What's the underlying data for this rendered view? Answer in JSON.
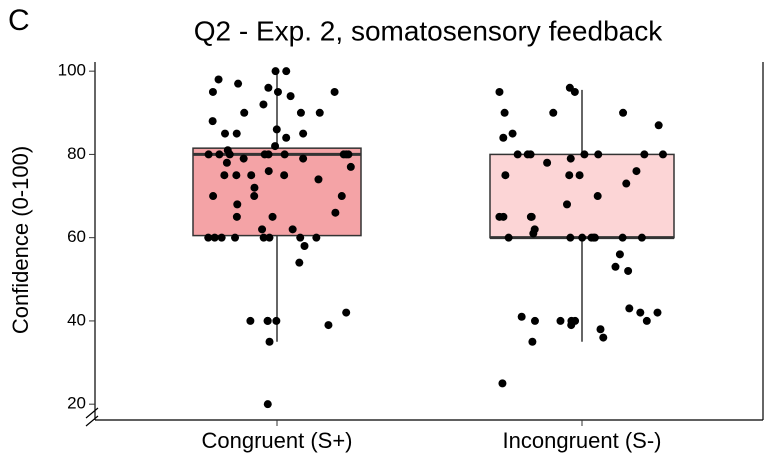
{
  "chart_data": {
    "type": "box",
    "panel_label": "C",
    "title": "Q2 - Exp. 2, somatosensory feedback",
    "y_label": "Confidence (0-100)",
    "categories": [
      "Congruent (S+)",
      "Incongruent (S-)"
    ],
    "ylim": [
      16.2,
      102.2
    ],
    "yticks": [
      20,
      40,
      60,
      80,
      100
    ],
    "boxes": [
      {
        "whisker_low": 35,
        "q1": 60.5,
        "median": 80,
        "q3": 81.5,
        "whisker_high": 100,
        "color": "#f4a3a6",
        "points": [
          100,
          100,
          98,
          97,
          96,
          95,
          95,
          95,
          94,
          92,
          90,
          90,
          90,
          88,
          86,
          85,
          85,
          85,
          84,
          82,
          81,
          80,
          80,
          80,
          80,
          80,
          80,
          80,
          80,
          80,
          79,
          79,
          78,
          77,
          76,
          75,
          75,
          75,
          75,
          74,
          72,
          70,
          70,
          70,
          68,
          66,
          65,
          65,
          62,
          62,
          60,
          60,
          60,
          60,
          60,
          60,
          60,
          60,
          58,
          54,
          42,
          40,
          40,
          40,
          40,
          39,
          35,
          20
        ]
      },
      {
        "whisker_low": 35,
        "q1": 60,
        "median": 60,
        "q3": 80,
        "whisker_high": 95.5,
        "color": "#fcd5d6",
        "points": [
          95,
          96,
          95,
          90,
          90,
          90,
          87,
          85,
          84,
          80,
          80,
          80,
          80,
          80,
          80,
          80,
          79,
          78,
          76,
          75,
          75,
          75,
          73,
          70,
          68,
          65,
          65,
          65,
          65,
          62,
          61,
          60,
          60,
          60,
          60,
          60,
          60,
          60,
          60,
          56,
          53,
          52,
          43,
          42,
          42,
          41,
          40,
          40,
          40,
          40,
          40,
          39,
          38,
          36,
          35,
          25
        ]
      }
    ]
  }
}
